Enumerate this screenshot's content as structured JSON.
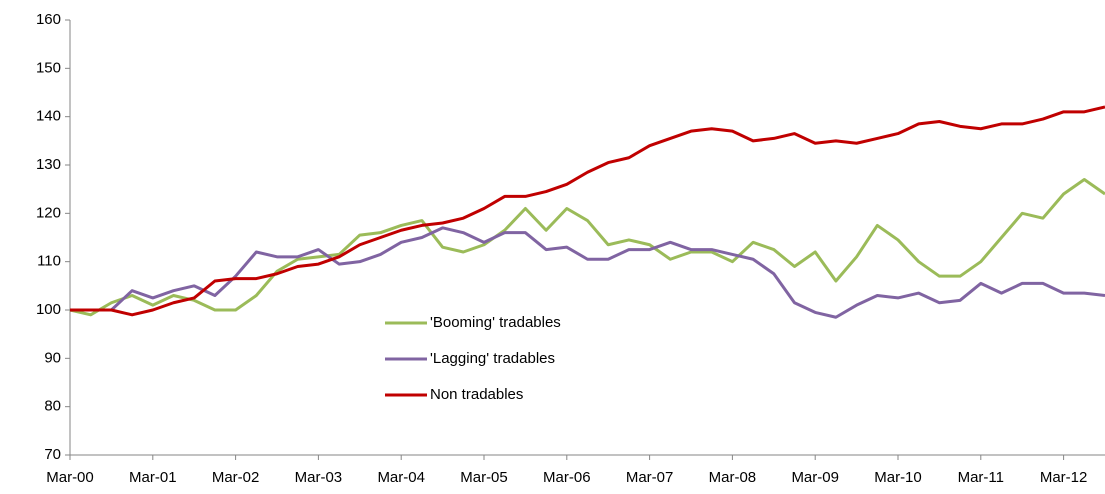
{
  "chart_data": {
    "type": "line",
    "categories": [
      "Mar-00",
      null,
      null,
      null,
      "Mar-01",
      null,
      null,
      null,
      "Mar-02",
      null,
      null,
      null,
      "Mar-03",
      null,
      null,
      null,
      "Mar-04",
      null,
      null,
      null,
      "Mar-05",
      null,
      null,
      null,
      "Mar-06",
      null,
      null,
      null,
      "Mar-07",
      null,
      null,
      null,
      "Mar-08",
      null,
      null,
      null,
      "Mar-09",
      null,
      null,
      null,
      "Mar-10",
      null,
      null,
      null,
      "Mar-11",
      null,
      null,
      null,
      "Mar-12",
      null,
      null
    ],
    "series": [
      {
        "name": "'Booming' tradables",
        "color": "#9bbb59",
        "values": [
          100,
          99,
          101.5,
          103,
          101,
          103,
          102,
          100,
          100,
          103,
          108,
          110.5,
          111,
          111.5,
          115.5,
          116,
          117.5,
          118.5,
          113,
          112,
          113.5,
          116.5,
          121,
          116.5,
          121,
          118.5,
          113.5,
          114.5,
          113.5,
          110.5,
          112,
          112,
          110,
          114,
          112.5,
          109,
          112,
          106,
          111,
          117.5,
          114.5,
          110,
          107,
          107,
          110,
          115,
          120,
          119,
          124,
          127,
          124
        ]
      },
      {
        "name": "'Lagging' tradables",
        "color": "#8064a2",
        "values": [
          100,
          100,
          100,
          104,
          102.5,
          104,
          105,
          103,
          107,
          112,
          111,
          111,
          112.5,
          109.5,
          110,
          111.5,
          114,
          115,
          117,
          116,
          114,
          116,
          116,
          112.5,
          113,
          110.5,
          110.5,
          112.5,
          112.5,
          114,
          112.5,
          112.5,
          111.5,
          110.5,
          107.5,
          101.5,
          99.5,
          98.5,
          101,
          103,
          102.5,
          103.5,
          101.5,
          102,
          105.5,
          103.5,
          105.5,
          105.5,
          103.5,
          103.5,
          103
        ]
      },
      {
        "name": "Non tradables",
        "color": "#c00000",
        "values": [
          100,
          100,
          100,
          99,
          100,
          101.5,
          102.5,
          106,
          106.5,
          106.5,
          107.5,
          109,
          109.5,
          111,
          113.5,
          115,
          116.5,
          117.5,
          118,
          119,
          121,
          123.5,
          123.5,
          124.5,
          126,
          128.5,
          130.5,
          131.5,
          134,
          135.5,
          137,
          137.5,
          137,
          135,
          135.5,
          136.5,
          134.5,
          135,
          134.5,
          135.5,
          136.5,
          138.5,
          139,
          138,
          137.5,
          138.5,
          138.5,
          139.5,
          141,
          141,
          142
        ]
      }
    ],
    "ylim": [
      70,
      160
    ],
    "yticks": [
      70,
      80,
      90,
      100,
      110,
      120,
      130,
      140,
      150,
      160
    ]
  }
}
